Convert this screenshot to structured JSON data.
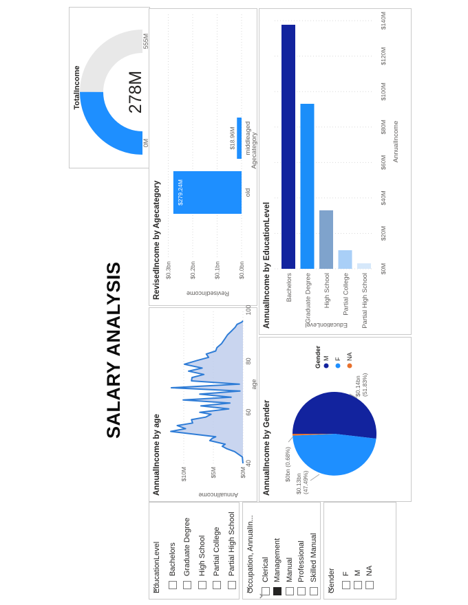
{
  "page": {
    "title": "SALARY ANALYSIS"
  },
  "slicers": [
    {
      "header": "EducationLevel",
      "row_chevrons": false,
      "items": [
        {
          "label": "Bachelors",
          "checked": false
        },
        {
          "label": "Graduate Degree",
          "checked": false
        },
        {
          "label": "High School",
          "checked": false
        },
        {
          "label": "Partial College",
          "checked": false
        },
        {
          "label": "Partial High School",
          "checked": false
        }
      ]
    },
    {
      "header": "Occupation, AnnualIn...",
      "row_chevrons": true,
      "items": [
        {
          "label": "Clerical",
          "checked": false
        },
        {
          "label": "Management",
          "checked": true
        },
        {
          "label": "Manual",
          "checked": false
        },
        {
          "label": "Professional",
          "checked": false
        },
        {
          "label": "Skilled Manual",
          "checked": false
        }
      ]
    },
    {
      "header": "Gender",
      "row_chevrons": false,
      "items": [
        {
          "label": "F",
          "checked": false
        },
        {
          "label": "M",
          "checked": false
        },
        {
          "label": "NA",
          "checked": false
        }
      ]
    }
  ],
  "chart_data": [
    {
      "type": "gauge",
      "title": "TotalIncome",
      "value": 278,
      "min": 0,
      "max": 555,
      "value_label": "278M",
      "min_label": "0M",
      "max_label": "555M",
      "fill_color": "#1E8FFF",
      "track_color": "#E8E8E8"
    },
    {
      "type": "bar",
      "title": "RevisedIncome by Agecategory",
      "xlabel": "Agecategory",
      "ylabel": "RevisedIncome",
      "categories": [
        "old",
        "middleaged"
      ],
      "values": [
        279.24,
        18.96
      ],
      "value_labels": [
        "$279.24M",
        "$18.96M"
      ],
      "ytick_values": [
        0,
        100,
        200,
        300
      ],
      "ytick_labels": [
        "$0.0bn",
        "$0.1bn",
        "$0.2bn",
        "$0.3bn"
      ],
      "ylim": [
        0,
        315
      ],
      "grid": true,
      "bar_color": "#1E8FFF"
    },
    {
      "type": "bar",
      "orientation": "horizontal",
      "title": "AnnualIncome by EducationLevel",
      "xlabel": "AnnualIncome",
      "ylabel": "EducationLevel",
      "categories": [
        "Bachelors",
        "Graduate Degree",
        "High School",
        "Partial College",
        "Partial High School"
      ],
      "values": [
        137.7,
        93.1,
        33.0,
        10.5,
        3.1
      ],
      "xtick_values": [
        0,
        20,
        40,
        60,
        80,
        100,
        120,
        140
      ],
      "xtick_labels": [
        "$0M",
        "$20M",
        "$40M",
        "$60M",
        "$80M",
        "$100M",
        "$120M",
        "$140M"
      ],
      "xlim": [
        0,
        147
      ],
      "grid": true,
      "colors": [
        "#12239E",
        "#1B8EF9",
        "#7FA3CC",
        "#A9CFF7",
        "#D6E8FA"
      ]
    },
    {
      "type": "area",
      "title": "AnnualIncome by age",
      "xlabel": "age",
      "ylabel": "AnnualIncome",
      "x": [
        40,
        42.5,
        43.3,
        44.6,
        45.8,
        46.7,
        47.5,
        48.9,
        49.8,
        50.4,
        52.5,
        53.6,
        54.8,
        55.8,
        57.1,
        58.1,
        59.2,
        60.0,
        61.3,
        62.5,
        63.6,
        64.8,
        65.9,
        67.1,
        68.3,
        69.6,
        71.0,
        72.3,
        73.6,
        74.8,
        76.1,
        77.3,
        78.8,
        80.3,
        81.5,
        82.8,
        84.0,
        85.3,
        86.9,
        88.6,
        90.3,
        91.9,
        93.3,
        94.4,
        95.3,
        95.8
      ],
      "y": [
        0,
        0.1,
        0.6,
        1.4,
        2.8,
        3.5,
        3.0,
        5.6,
        5.2,
        4.6,
        12.2,
        9.7,
        11.1,
        8.5,
        8.7,
        6.3,
        5.4,
        7.3,
        2.4,
        7.1,
        2.2,
        10.1,
        2.0,
        7.3,
        0.5,
        12.1,
        0.6,
        8.7,
        8.6,
        6.6,
        9.2,
        6.9,
        9.9,
        7.7,
        5.8,
        6.2,
        4.6,
        4.4,
        3.6,
        3.1,
        2.6,
        1.9,
        1.3,
        1.0,
        0.2,
        0
      ],
      "xtick_values": [
        40,
        60,
        80,
        100
      ],
      "xtick_labels": [
        "40",
        "60",
        "80",
        "100"
      ],
      "ytick_values": [
        0,
        5,
        10
      ],
      "ytick_labels": [
        "$0M",
        "$5M",
        "$10M"
      ],
      "xlim": [
        40,
        100
      ],
      "ylim": [
        0,
        13
      ],
      "grid": true,
      "line_color": "#2E7CD6",
      "fill_color": "#C0CEEC"
    },
    {
      "type": "pie",
      "title": "AnnualIncome by Gender",
      "legend_title": "Gender",
      "legend_position": "right",
      "slices": [
        {
          "label": "M",
          "value_label": "$0.14bn",
          "pct": 51.83,
          "color": "#12239E",
          "callout_lines": [
            "$0.14bn",
            "(51.83%)"
          ]
        },
        {
          "label": "F",
          "value_label": "$0.13bn",
          "pct": 47.49,
          "color": "#1E8FFF",
          "callout_lines": [
            "$0.13bn",
            "(47.49%)"
          ]
        },
        {
          "label": "NA",
          "value_label": "$0bn",
          "pct": 0.68,
          "color": "#E8712D",
          "callout_lines": [
            "$0bn (0.68%)"
          ]
        }
      ]
    }
  ]
}
